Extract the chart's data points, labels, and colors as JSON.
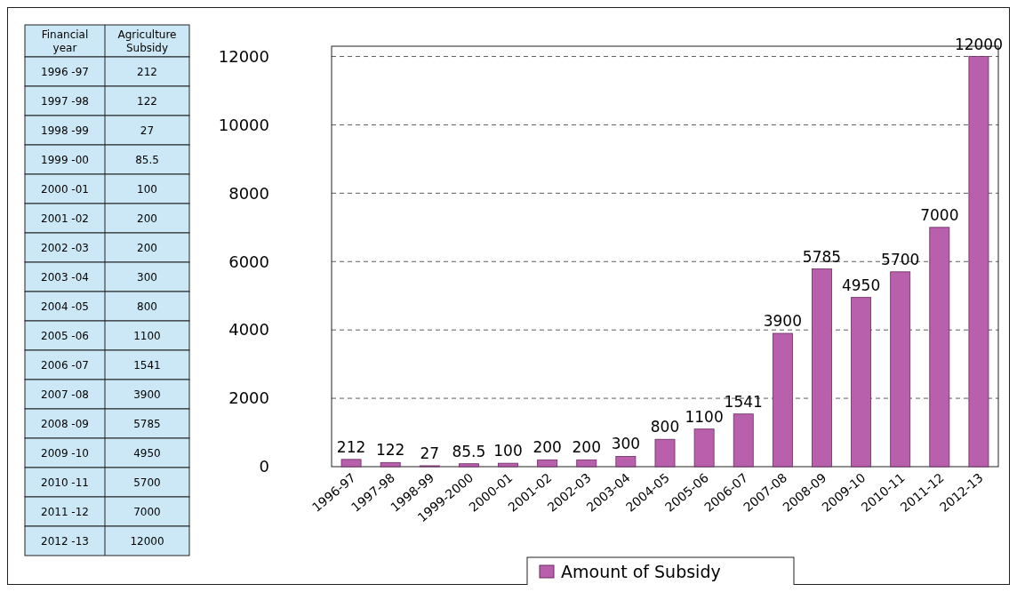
{
  "chart_data": [
    {
      "type": "other",
      "xlabel": "Financial year",
      "ylabel": "Agriculture Subsidy",
      "categories": [
        "1996 -97",
        "1997 -98",
        "1998 -99",
        "1999 -00",
        "2000 -01",
        "2001 -02",
        "2002 -03",
        "2003 -04",
        "2004 -05",
        "2005 -06",
        "2006 -07",
        "2007 -08",
        "2008 -09",
        "2009 -10",
        "2010 -11",
        "2011 -12",
        "2012 -13"
      ],
      "values": [
        212,
        122,
        27,
        85.5,
        100,
        200,
        200,
        300,
        800,
        1100,
        1541,
        3900,
        5785,
        4950,
        5700,
        7000,
        12000
      ],
      "data_labels": true
    },
    {
      "type": "bar",
      "categories": [
        "1996-97",
        "1997-98",
        "1998-99",
        "1999-2000",
        "2000-01",
        "2001-02",
        "2002-03",
        "2003-04",
        "2004-05",
        "2005-06",
        "2006-07",
        "2007-08",
        "2008-09",
        "2009-10",
        "2010-11",
        "2011-12",
        "2012-13"
      ],
      "series": [
        {
          "name": "Amount of Subsidy",
          "color": "#b860ac",
          "values": [
            212,
            122,
            27,
            85.5,
            100,
            200,
            200,
            300,
            800,
            1100,
            1541,
            3900,
            5785,
            4950,
            5700,
            7000,
            12000
          ]
        }
      ],
      "ylim": [
        0,
        12300
      ],
      "yticks": [
        0,
        2000,
        4000,
        6000,
        8000,
        10000,
        12000
      ],
      "grid": "y",
      "legend": "bottom",
      "data_labels": true
    }
  ]
}
